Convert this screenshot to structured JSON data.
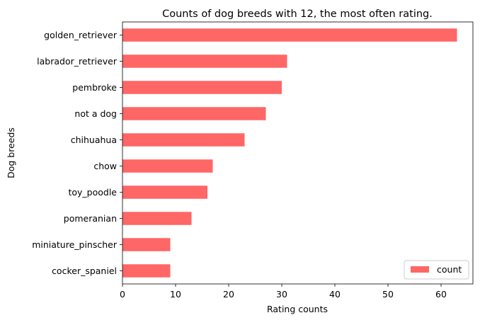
{
  "chart_data": {
    "type": "bar",
    "orientation": "horizontal",
    "title": "Counts of dog breeds with 12, the most often rating.",
    "xlabel": "Rating counts",
    "ylabel": "Dog breeds",
    "categories": [
      "golden_retriever",
      "labrador_retriever",
      "pembroke",
      "not a dog",
      "chihuahua",
      "chow",
      "toy_poodle",
      "pomeranian",
      "miniature_pinscher",
      "cocker_spaniel"
    ],
    "series": [
      {
        "name": "count",
        "color": "#ff6666",
        "values": [
          63,
          31,
          30,
          27,
          23,
          17,
          16,
          13,
          9,
          9
        ]
      }
    ],
    "xlim": [
      0,
      66
    ],
    "xticks": [
      0,
      10,
      20,
      30,
      40,
      50,
      60
    ],
    "grid": false,
    "legend": {
      "placement": "bottom-right",
      "entries": [
        "count"
      ]
    }
  }
}
